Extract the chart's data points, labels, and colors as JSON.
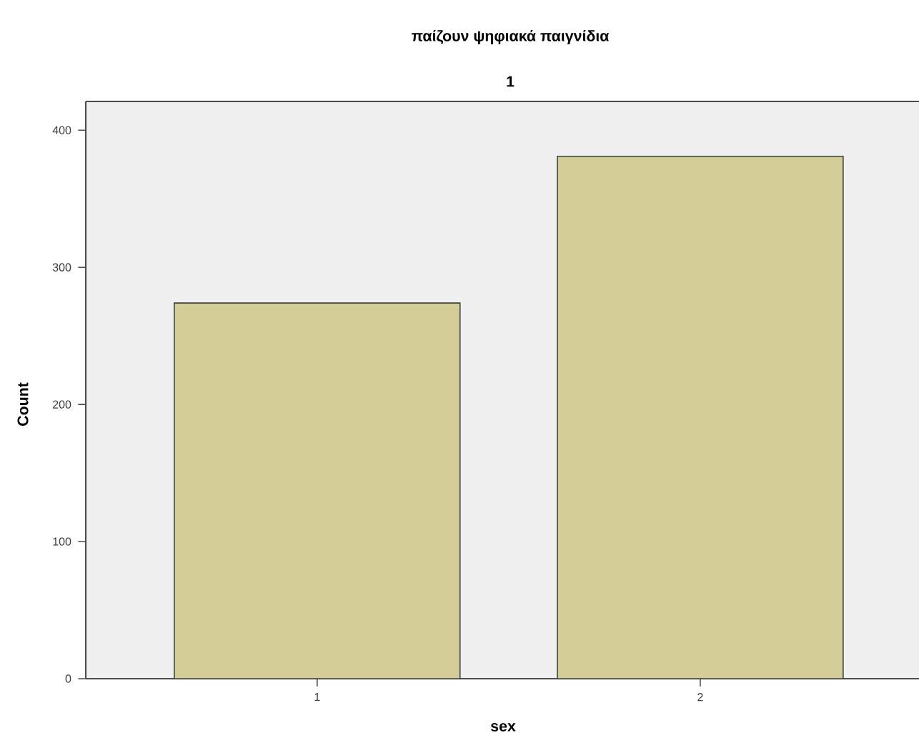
{
  "chart_data": {
    "type": "bar",
    "title": "παίζουν ψηφιακά παιγνίδια",
    "subtitle": "1",
    "xlabel": "sex",
    "ylabel": "Count",
    "categories": [
      "1",
      "2"
    ],
    "values": [
      274,
      381
    ],
    "color": "#d3ce97",
    "ylim": [
      0,
      421
    ],
    "yticks": [
      0,
      100,
      200,
      300,
      400
    ]
  }
}
